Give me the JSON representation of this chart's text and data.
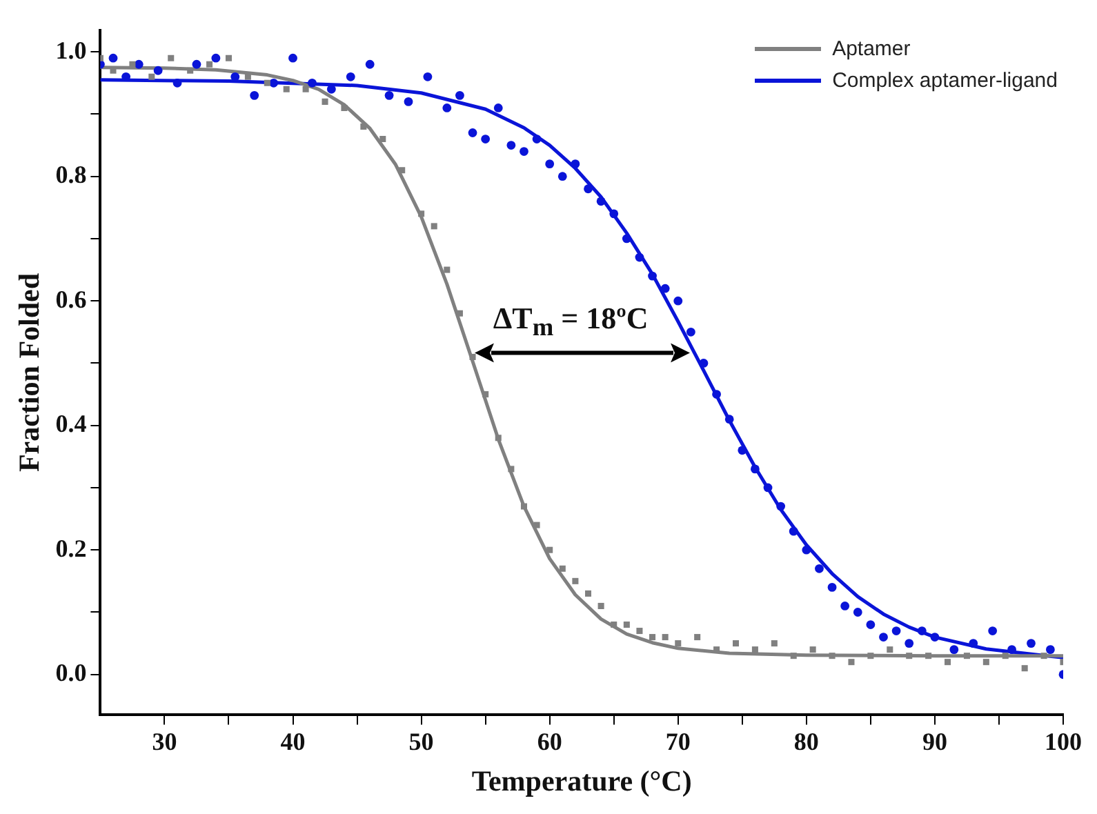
{
  "chart_data": {
    "type": "line",
    "xlabel": "Temperature (°C)",
    "ylabel": "Fraction Folded",
    "xlim": [
      25,
      100
    ],
    "ylim": [
      -0.065,
      1.035
    ],
    "xticks": [
      30,
      {
        "value": 35,
        "label": null
      },
      40,
      {
        "value": 45,
        "label": null
      },
      50,
      {
        "value": 55,
        "label": null
      },
      60,
      {
        "value": 65,
        "label": null
      },
      70,
      {
        "value": 75,
        "label": null
      },
      80,
      {
        "value": 85,
        "label": null
      },
      90,
      {
        "value": 95,
        "label": null
      },
      100
    ],
    "yticks": [
      {
        "value": 0,
        "label": "0.0"
      },
      {
        "value": 0.1,
        "label": null
      },
      0.2,
      {
        "value": 0.3,
        "label": null
      },
      0.4,
      {
        "value": 0.5,
        "label": null
      },
      0.6,
      {
        "value": 0.7,
        "label": null
      },
      0.8,
      {
        "value": 0.9,
        "label": null
      },
      {
        "value": 1,
        "label": "1.0"
      }
    ],
    "legend": "top right",
    "annotations": [
      "ΔT$_{m}$ = 18ºC"
    ],
    "series": [
      {
        "type": "scatter",
        "marker": "square",
        "color": "#808080",
        "x": [
          25,
          26,
          27.5,
          29,
          30.5,
          32,
          33.5,
          35,
          36.5,
          38,
          39.5,
          41,
          42.5,
          44,
          45.5,
          47,
          48.5,
          50,
          51,
          52,
          53,
          54,
          55,
          56,
          57,
          58,
          59,
          60,
          61,
          62,
          63,
          64,
          65,
          66,
          67,
          68,
          69,
          70,
          71.5,
          73,
          74.5,
          76,
          77.5,
          79,
          80.5,
          82,
          83.5,
          85,
          86.5,
          88,
          89.5,
          91,
          92.5,
          94,
          95.5,
          97,
          98.5,
          100
        ],
        "values": [
          0.99,
          0.97,
          0.98,
          0.96,
          0.99,
          0.97,
          0.98,
          0.99,
          0.96,
          0.95,
          0.94,
          0.94,
          0.92,
          0.91,
          0.88,
          0.86,
          0.81,
          0.74,
          0.72,
          0.65,
          0.58,
          0.51,
          0.45,
          0.38,
          0.33,
          0.27,
          0.24,
          0.2,
          0.17,
          0.15,
          0.13,
          0.11,
          0.08,
          0.08,
          0.07,
          0.06,
          0.06,
          0.05,
          0.06,
          0.04,
          0.05,
          0.04,
          0.05,
          0.03,
          0.04,
          0.03,
          0.02,
          0.03,
          0.04,
          0.03,
          0.03,
          0.02,
          0.03,
          0.02,
          0.03,
          0.01,
          0.03,
          0.02
        ]
      },
      {
        "type": "scatter",
        "marker": "circle",
        "color": "#0a14d8",
        "x": [
          25,
          26,
          27,
          28,
          29.5,
          31,
          32.5,
          34,
          35.5,
          37,
          38.5,
          40,
          41.5,
          43,
          44.5,
          46,
          47.5,
          49,
          50.5,
          52,
          53,
          54,
          55,
          56,
          57,
          58,
          59,
          60,
          61,
          62,
          63,
          64,
          65,
          66,
          67,
          68,
          69,
          70,
          71,
          72,
          73,
          74,
          75,
          76,
          77,
          78,
          79,
          80,
          81,
          82,
          83,
          84,
          85,
          86,
          87,
          88,
          89,
          90,
          91.5,
          93,
          94.5,
          96,
          97.5,
          99,
          100
        ],
        "values": [
          0.98,
          0.99,
          0.96,
          0.98,
          0.97,
          0.95,
          0.98,
          0.99,
          0.96,
          0.93,
          0.95,
          0.99,
          0.95,
          0.94,
          0.96,
          0.98,
          0.93,
          0.92,
          0.96,
          0.91,
          0.93,
          0.87,
          0.86,
          0.91,
          0.85,
          0.84,
          0.86,
          0.82,
          0.8,
          0.82,
          0.78,
          0.76,
          0.74,
          0.7,
          0.67,
          0.64,
          0.62,
          0.6,
          0.55,
          0.5,
          0.45,
          0.41,
          0.36,
          0.33,
          0.3,
          0.27,
          0.23,
          0.2,
          0.17,
          0.14,
          0.11,
          0.1,
          0.08,
          0.06,
          0.07,
          0.05,
          0.07,
          0.06,
          0.04,
          0.05,
          0.07,
          0.04,
          0.05,
          0.04,
          0.0
        ]
      },
      {
        "type": "line",
        "name": "Aptamer",
        "color": "#808080",
        "x": [
          25,
          30,
          34,
          38,
          40,
          42,
          44,
          46,
          48,
          50,
          52,
          54,
          56,
          58,
          60,
          62,
          64,
          66,
          68,
          70,
          74,
          80,
          90,
          100
        ],
        "values": [
          0.975,
          0.974,
          0.971,
          0.963,
          0.954,
          0.94,
          0.915,
          0.877,
          0.819,
          0.735,
          0.627,
          0.503,
          0.378,
          0.27,
          0.186,
          0.128,
          0.089,
          0.065,
          0.051,
          0.042,
          0.034,
          0.031,
          0.03,
          0.03
        ]
      },
      {
        "type": "line",
        "name": "Complex aptamer-ligand",
        "color": "#0a14d8",
        "x": [
          25,
          35,
          45,
          50,
          55,
          58,
          60,
          62,
          64,
          66,
          68,
          70,
          72,
          74,
          76,
          78,
          80,
          82,
          84,
          86,
          88,
          90,
          94,
          100
        ],
        "values": [
          0.955,
          0.953,
          0.946,
          0.934,
          0.908,
          0.878,
          0.85,
          0.813,
          0.767,
          0.709,
          0.643,
          0.567,
          0.488,
          0.408,
          0.333,
          0.265,
          0.208,
          0.162,
          0.125,
          0.097,
          0.076,
          0.06,
          0.041,
          0.027
        ]
      }
    ]
  }
}
